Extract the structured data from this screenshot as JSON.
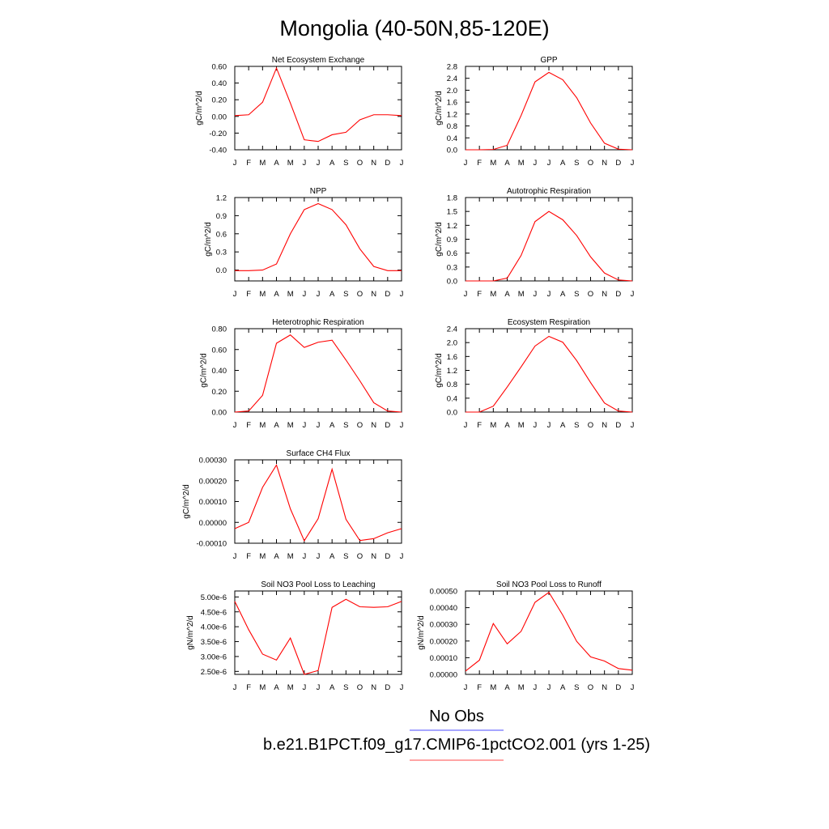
{
  "figure": {
    "title": "Mongolia (40-50N,85-120E)",
    "legend": [
      {
        "label": "No Obs",
        "color": "#6f6fff"
      },
      {
        "label": "b.e21.B1PCT.f09_g17.CMIP6-1pctCO2.001 (yrs 1-25)",
        "color": "#ff6f6f"
      }
    ]
  },
  "chart_data": [
    {
      "type": "line",
      "title": "Net Ecosystem Exchange",
      "ylabel": "gC/m^2/d",
      "categories": [
        "J",
        "F",
        "M",
        "A",
        "M",
        "J",
        "J",
        "A",
        "S",
        "O",
        "N",
        "D",
        "J"
      ],
      "ylim": [
        -0.4,
        0.6
      ],
      "yticks": [
        "0.60",
        "0.40",
        "0.20",
        "0.00",
        "-0.20",
        "-0.40"
      ],
      "series": [
        {
          "color": "#ff0000",
          "values": [
            0.01,
            0.02,
            0.17,
            0.58,
            0.16,
            -0.28,
            -0.3,
            -0.22,
            -0.19,
            -0.04,
            0.02,
            0.02,
            0.01
          ]
        }
      ]
    },
    {
      "type": "line",
      "title": "GPP",
      "ylabel": "gC/m^2/d",
      "categories": [
        "J",
        "F",
        "M",
        "A",
        "M",
        "J",
        "J",
        "A",
        "S",
        "O",
        "N",
        "D",
        "J"
      ],
      "ylim": [
        0.0,
        2.8
      ],
      "yticks": [
        "2.8",
        "2.4",
        "2.0",
        "1.6",
        "1.2",
        "0.8",
        "0.4",
        "0.0"
      ],
      "series": [
        {
          "color": "#ff0000",
          "values": [
            0.0,
            0.0,
            0.01,
            0.15,
            1.15,
            2.28,
            2.6,
            2.35,
            1.75,
            0.9,
            0.22,
            0.02,
            0.0
          ]
        }
      ]
    },
    {
      "type": "line",
      "title": "NPP",
      "ylabel": "gC/m^2/d",
      "categories": [
        "J",
        "F",
        "M",
        "A",
        "M",
        "J",
        "J",
        "A",
        "S",
        "O",
        "N",
        "D",
        "J"
      ],
      "ylim": [
        -0.18,
        1.2
      ],
      "yticks": [
        "1.2",
        "0.9",
        "0.6",
        "0.3",
        "0.0"
      ],
      "series": [
        {
          "color": "#ff0000",
          "values": [
            -0.01,
            -0.01,
            0.0,
            0.1,
            0.6,
            1.0,
            1.1,
            1.0,
            0.75,
            0.35,
            0.06,
            -0.01,
            -0.01
          ]
        }
      ]
    },
    {
      "type": "line",
      "title": "Autotrophic Respiration",
      "ylabel": "gC/m^2/d",
      "categories": [
        "J",
        "F",
        "M",
        "A",
        "M",
        "J",
        "J",
        "A",
        "S",
        "O",
        "N",
        "D",
        "J"
      ],
      "ylim": [
        0.0,
        1.8
      ],
      "yticks": [
        "1.8",
        "1.5",
        "1.2",
        "0.9",
        "0.6",
        "0.3",
        "0.0"
      ],
      "series": [
        {
          "color": "#ff0000",
          "values": [
            0.0,
            0.0,
            0.0,
            0.06,
            0.55,
            1.28,
            1.5,
            1.32,
            0.98,
            0.52,
            0.17,
            0.02,
            0.0
          ]
        }
      ]
    },
    {
      "type": "line",
      "title": "Heterotrophic Respiration",
      "ylabel": "gC/m^2/d",
      "categories": [
        "J",
        "F",
        "M",
        "A",
        "M",
        "J",
        "J",
        "A",
        "S",
        "O",
        "N",
        "D",
        "J"
      ],
      "ylim": [
        0.0,
        0.8
      ],
      "yticks": [
        "0.80",
        "0.60",
        "0.40",
        "0.20",
        "0.00"
      ],
      "series": [
        {
          "color": "#ff0000",
          "values": [
            0.0,
            0.01,
            0.16,
            0.66,
            0.74,
            0.62,
            0.67,
            0.69,
            0.5,
            0.3,
            0.09,
            0.01,
            0.0
          ]
        }
      ]
    },
    {
      "type": "line",
      "title": "Ecosystem Respiration",
      "ylabel": "gC/m^2/d",
      "categories": [
        "J",
        "F",
        "M",
        "A",
        "M",
        "J",
        "J",
        "A",
        "S",
        "O",
        "N",
        "D",
        "J"
      ],
      "ylim": [
        0.0,
        2.4
      ],
      "yticks": [
        "2.4",
        "2.0",
        "1.6",
        "1.2",
        "0.8",
        "0.4",
        "0.0"
      ],
      "series": [
        {
          "color": "#ff0000",
          "values": [
            0.0,
            0.0,
            0.17,
            0.72,
            1.3,
            1.9,
            2.18,
            2.01,
            1.48,
            0.85,
            0.26,
            0.03,
            0.0
          ]
        }
      ]
    },
    {
      "type": "line",
      "title": "Surface CH4 Flux",
      "ylabel": "gC/m^2/d",
      "categories": [
        "J",
        "F",
        "M",
        "A",
        "M",
        "J",
        "J",
        "A",
        "S",
        "O",
        "N",
        "D",
        "J"
      ],
      "ylim": [
        -0.0001,
        0.0003
      ],
      "yticks": [
        "0.00030",
        "0.00020",
        "0.00010",
        "0.00000",
        "-0.00010"
      ],
      "series": [
        {
          "color": "#ff0000",
          "values": [
            -3e-05,
            0.0,
            0.000168,
            0.000275,
            6.5e-05,
            -8.8e-05,
            1.8e-05,
            0.000255,
            1.5e-05,
            -8.7e-05,
            -7.8e-05,
            -5e-05,
            -3e-05
          ]
        }
      ]
    },
    {
      "type": "line",
      "title": "Soil NO3 Pool Loss to Leaching",
      "ylabel": "gN/m^2/d",
      "categories": [
        "J",
        "F",
        "M",
        "A",
        "M",
        "J",
        "J",
        "A",
        "S",
        "O",
        "N",
        "D",
        "J"
      ],
      "ylim": [
        2.4e-06,
        5.2e-06
      ],
      "yticks": [
        "5.00e-6",
        "4.50e-6",
        "4.00e-6",
        "3.50e-6",
        "3.00e-6",
        "2.50e-6"
      ],
      "series": [
        {
          "color": "#ff0000",
          "values": [
            4.85e-06,
            3.9e-06,
            3.08e-06,
            2.88e-06,
            3.62e-06,
            2.4e-06,
            2.53e-06,
            4.65e-06,
            4.92e-06,
            4.67e-06,
            4.65e-06,
            4.67e-06,
            4.85e-06
          ]
        }
      ]
    },
    {
      "type": "line",
      "title": "Soil NO3 Pool Loss to Runoff",
      "ylabel": "gN/m^2/d",
      "categories": [
        "J",
        "F",
        "M",
        "A",
        "M",
        "J",
        "J",
        "A",
        "S",
        "O",
        "N",
        "D",
        "J"
      ],
      "ylim": [
        0.0,
        0.0005
      ],
      "yticks": [
        "0.00050",
        "0.00040",
        "0.00030",
        "0.00020",
        "0.00010",
        "0.00000"
      ],
      "series": [
        {
          "color": "#ff0000",
          "values": [
            2e-05,
            8.5e-05,
            0.000305,
            0.000183,
            0.000258,
            0.000432,
            0.000492,
            0.000355,
            0.000198,
            0.000105,
            8e-05,
            3.5e-05,
            2.5e-05
          ]
        }
      ]
    }
  ]
}
